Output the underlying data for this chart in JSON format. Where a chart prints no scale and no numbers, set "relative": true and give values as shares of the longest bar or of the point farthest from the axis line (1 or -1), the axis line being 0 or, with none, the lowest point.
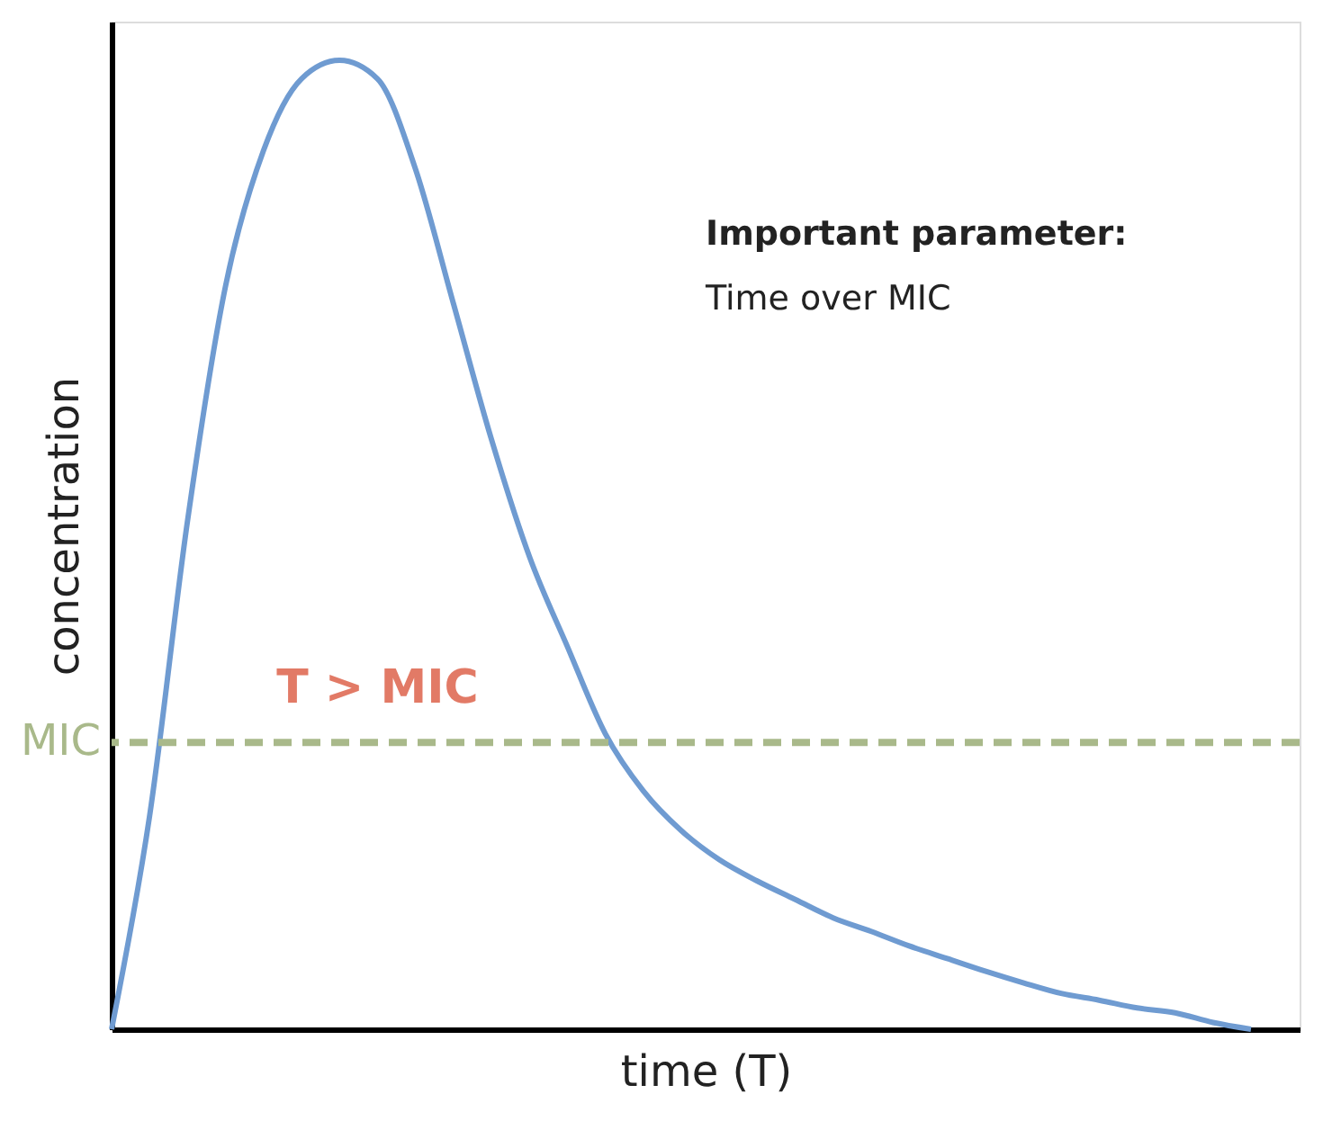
{
  "chart_data": {
    "type": "line",
    "relative": true,
    "xlabel": "time (T)",
    "ylabel": "concentration",
    "categories": [
      null,
      null,
      null,
      null,
      null,
      null,
      null,
      null,
      null,
      null,
      null,
      null,
      null,
      null,
      null,
      null,
      null,
      null,
      null,
      null,
      null,
      null,
      null,
      null,
      null,
      null,
      null,
      null,
      null,
      null,
      null
    ],
    "series": [
      {
        "color": "#6f9bd1",
        "values": [
          0,
          0.22,
          0.525,
          0.767,
          0.907,
          0.981,
          1.0,
          0.981,
          0.888,
          0.749,
          0.609,
          0.488,
          0.395,
          0.305,
          0.246,
          0.205,
          0.175,
          0.153,
          0.134,
          0.115,
          0.101,
          0.086,
          0.073,
          0.06,
          0.048,
          0.037,
          0.03,
          0.022,
          0.017,
          0.007,
          0
        ]
      }
    ],
    "ref_lines": [
      {
        "axis": "y",
        "value": 0.296,
        "label": "MIC",
        "color": "#a9b98a",
        "line_style": "dashed"
      }
    ],
    "annotations": [
      "T > MIC",
      "Important parameter:",
      "Time over MIC"
    ],
    "grid": false,
    "marker": "none",
    "line_style": "solid"
  }
}
